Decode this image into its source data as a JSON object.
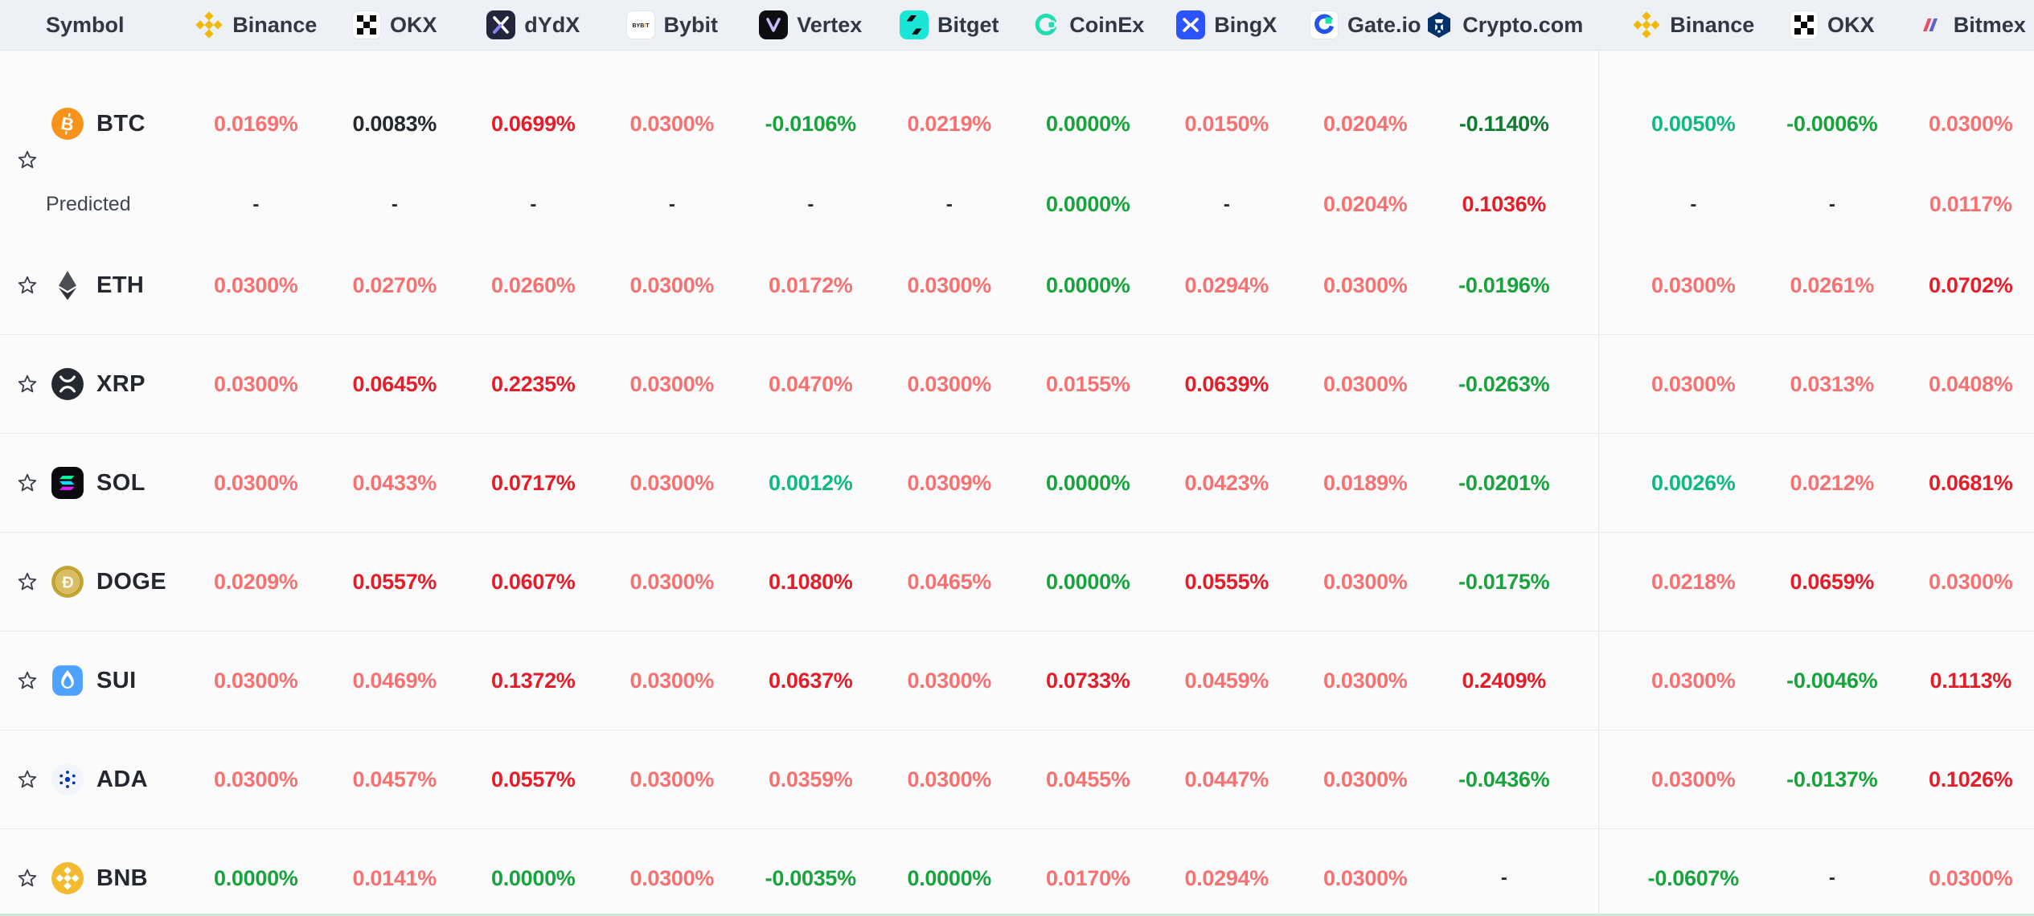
{
  "table": {
    "symbol_header": "Symbol",
    "predicted_label": "Predicted",
    "colors": {
      "pink": "#f87171",
      "red": "#e51d28",
      "green": "#18a33c",
      "dark_green": "#117a33",
      "teal": "#10b981",
      "dark": "#24292f",
      "dash": "#262c33"
    },
    "columns": [
      {
        "label": "Binance",
        "icon": "binance-icon"
      },
      {
        "label": "OKX",
        "icon": "okx-icon"
      },
      {
        "label": "dYdX",
        "icon": "dydx-icon"
      },
      {
        "label": "Bybit",
        "icon": "bybit-icon"
      },
      {
        "label": "Vertex",
        "icon": "vertex-icon"
      },
      {
        "label": "Bitget",
        "icon": "bitget-icon"
      },
      {
        "label": "CoinEx",
        "icon": "coinex-icon"
      },
      {
        "label": "BingX",
        "icon": "bingx-icon"
      },
      {
        "label": "Gate.io",
        "icon": "gateio-icon"
      },
      {
        "label": "Crypto.com",
        "icon": "cryptocom-icon"
      },
      {
        "label": "Binance",
        "icon": "binance-icon"
      },
      {
        "label": "OKX",
        "icon": "okx-icon"
      },
      {
        "label": "Bitmex",
        "icon": "bitmex-icon"
      }
    ],
    "rows": [
      {
        "symbol": "BTC",
        "icon": "btc-icon",
        "values": [
          {
            "v": "0.0169%",
            "c": "pink"
          },
          {
            "v": "0.0083%",
            "c": "dark"
          },
          {
            "v": "0.0699%",
            "c": "red"
          },
          {
            "v": "0.0300%",
            "c": "pink"
          },
          {
            "v": "-0.0106%",
            "c": "green"
          },
          {
            "v": "0.0219%",
            "c": "pink"
          },
          {
            "v": "0.0000%",
            "c": "green"
          },
          {
            "v": "0.0150%",
            "c": "pink"
          },
          {
            "v": "0.0204%",
            "c": "pink"
          },
          {
            "v": "-0.1140%",
            "c": "dark_green"
          },
          {
            "v": "0.0050%",
            "c": "teal"
          },
          {
            "v": "-0.0006%",
            "c": "green"
          },
          {
            "v": "0.0300%",
            "c": "pink"
          }
        ],
        "predicted": [
          {
            "v": "-",
            "c": "dash"
          },
          {
            "v": "-",
            "c": "dash"
          },
          {
            "v": "-",
            "c": "dash"
          },
          {
            "v": "-",
            "c": "dash"
          },
          {
            "v": "-",
            "c": "dash"
          },
          {
            "v": "-",
            "c": "dash"
          },
          {
            "v": "0.0000%",
            "c": "green"
          },
          {
            "v": "-",
            "c": "dash"
          },
          {
            "v": "0.0204%",
            "c": "pink"
          },
          {
            "v": "0.1036%",
            "c": "red"
          },
          {
            "v": "-",
            "c": "dash"
          },
          {
            "v": "-",
            "c": "dash"
          },
          {
            "v": "0.0117%",
            "c": "pink"
          }
        ]
      },
      {
        "symbol": "ETH",
        "icon": "eth-icon",
        "values": [
          {
            "v": "0.0300%",
            "c": "pink"
          },
          {
            "v": "0.0270%",
            "c": "pink"
          },
          {
            "v": "0.0260%",
            "c": "pink"
          },
          {
            "v": "0.0300%",
            "c": "pink"
          },
          {
            "v": "0.0172%",
            "c": "pink"
          },
          {
            "v": "0.0300%",
            "c": "pink"
          },
          {
            "v": "0.0000%",
            "c": "green"
          },
          {
            "v": "0.0294%",
            "c": "pink"
          },
          {
            "v": "0.0300%",
            "c": "pink"
          },
          {
            "v": "-0.0196%",
            "c": "green"
          },
          {
            "v": "0.0300%",
            "c": "pink"
          },
          {
            "v": "0.0261%",
            "c": "pink"
          },
          {
            "v": "0.0702%",
            "c": "red"
          }
        ]
      },
      {
        "symbol": "XRP",
        "icon": "xrp-icon",
        "values": [
          {
            "v": "0.0300%",
            "c": "pink"
          },
          {
            "v": "0.0645%",
            "c": "red"
          },
          {
            "v": "0.2235%",
            "c": "red"
          },
          {
            "v": "0.0300%",
            "c": "pink"
          },
          {
            "v": "0.0470%",
            "c": "pink"
          },
          {
            "v": "0.0300%",
            "c": "pink"
          },
          {
            "v": "0.0155%",
            "c": "pink"
          },
          {
            "v": "0.0639%",
            "c": "red"
          },
          {
            "v": "0.0300%",
            "c": "pink"
          },
          {
            "v": "-0.0263%",
            "c": "green"
          },
          {
            "v": "0.0300%",
            "c": "pink"
          },
          {
            "v": "0.0313%",
            "c": "pink"
          },
          {
            "v": "0.0408%",
            "c": "pink"
          }
        ]
      },
      {
        "symbol": "SOL",
        "icon": "sol-icon",
        "values": [
          {
            "v": "0.0300%",
            "c": "pink"
          },
          {
            "v": "0.0433%",
            "c": "pink"
          },
          {
            "v": "0.0717%",
            "c": "red"
          },
          {
            "v": "0.0300%",
            "c": "pink"
          },
          {
            "v": "0.0012%",
            "c": "teal"
          },
          {
            "v": "0.0309%",
            "c": "pink"
          },
          {
            "v": "0.0000%",
            "c": "green"
          },
          {
            "v": "0.0423%",
            "c": "pink"
          },
          {
            "v": "0.0189%",
            "c": "pink"
          },
          {
            "v": "-0.0201%",
            "c": "green"
          },
          {
            "v": "0.0026%",
            "c": "teal"
          },
          {
            "v": "0.0212%",
            "c": "pink"
          },
          {
            "v": "0.0681%",
            "c": "red"
          }
        ]
      },
      {
        "symbol": "DOGE",
        "icon": "doge-icon",
        "values": [
          {
            "v": "0.0209%",
            "c": "pink"
          },
          {
            "v": "0.0557%",
            "c": "red"
          },
          {
            "v": "0.0607%",
            "c": "red"
          },
          {
            "v": "0.0300%",
            "c": "pink"
          },
          {
            "v": "0.1080%",
            "c": "red"
          },
          {
            "v": "0.0465%",
            "c": "pink"
          },
          {
            "v": "0.0000%",
            "c": "green"
          },
          {
            "v": "0.0555%",
            "c": "red"
          },
          {
            "v": "0.0300%",
            "c": "pink"
          },
          {
            "v": "-0.0175%",
            "c": "green"
          },
          {
            "v": "0.0218%",
            "c": "pink"
          },
          {
            "v": "0.0659%",
            "c": "red"
          },
          {
            "v": "0.0300%",
            "c": "pink"
          }
        ]
      },
      {
        "symbol": "SUI",
        "icon": "sui-icon",
        "values": [
          {
            "v": "0.0300%",
            "c": "pink"
          },
          {
            "v": "0.0469%",
            "c": "pink"
          },
          {
            "v": "0.1372%",
            "c": "red"
          },
          {
            "v": "0.0300%",
            "c": "pink"
          },
          {
            "v": "0.0637%",
            "c": "red"
          },
          {
            "v": "0.0300%",
            "c": "pink"
          },
          {
            "v": "0.0733%",
            "c": "red"
          },
          {
            "v": "0.0459%",
            "c": "pink"
          },
          {
            "v": "0.0300%",
            "c": "pink"
          },
          {
            "v": "0.2409%",
            "c": "red"
          },
          {
            "v": "0.0300%",
            "c": "pink"
          },
          {
            "v": "-0.0046%",
            "c": "green"
          },
          {
            "v": "0.1113%",
            "c": "red"
          }
        ]
      },
      {
        "symbol": "ADA",
        "icon": "ada-icon",
        "values": [
          {
            "v": "0.0300%",
            "c": "pink"
          },
          {
            "v": "0.0457%",
            "c": "pink"
          },
          {
            "v": "0.0557%",
            "c": "red"
          },
          {
            "v": "0.0300%",
            "c": "pink"
          },
          {
            "v": "0.0359%",
            "c": "pink"
          },
          {
            "v": "0.0300%",
            "c": "pink"
          },
          {
            "v": "0.0455%",
            "c": "pink"
          },
          {
            "v": "0.0447%",
            "c": "pink"
          },
          {
            "v": "0.0300%",
            "c": "pink"
          },
          {
            "v": "-0.0436%",
            "c": "green"
          },
          {
            "v": "0.0300%",
            "c": "pink"
          },
          {
            "v": "-0.0137%",
            "c": "green"
          },
          {
            "v": "0.1026%",
            "c": "red"
          }
        ]
      },
      {
        "symbol": "BNB",
        "icon": "bnb-icon",
        "values": [
          {
            "v": "0.0000%",
            "c": "green"
          },
          {
            "v": "0.0141%",
            "c": "pink"
          },
          {
            "v": "0.0000%",
            "c": "green"
          },
          {
            "v": "0.0300%",
            "c": "pink"
          },
          {
            "v": "-0.0035%",
            "c": "green"
          },
          {
            "v": "0.0000%",
            "c": "green"
          },
          {
            "v": "0.0170%",
            "c": "pink"
          },
          {
            "v": "0.0294%",
            "c": "pink"
          },
          {
            "v": "0.0300%",
            "c": "pink"
          },
          {
            "v": "-",
            "c": "dash"
          },
          {
            "v": "-0.0607%",
            "c": "green"
          },
          {
            "v": "-",
            "c": "dash"
          },
          {
            "v": "0.0300%",
            "c": "pink"
          }
        ]
      }
    ]
  }
}
